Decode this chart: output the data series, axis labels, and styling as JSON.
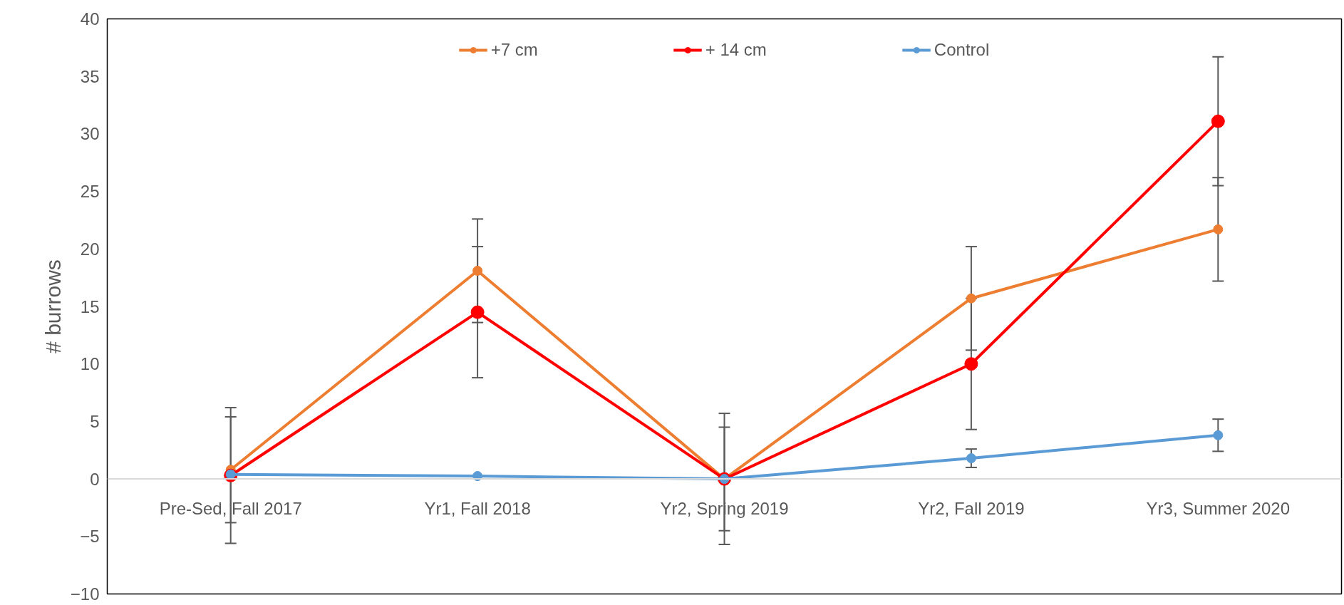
{
  "chart_data": {
    "type": "line",
    "ylabel": "# burrows",
    "categories": [
      "Pre-Sed, Fall 2017",
      "Yr1, Fall 2018",
      "Yr2, Spring 2019",
      "Yr2, Fall 2019",
      "Yr3, Summer 2020"
    ],
    "series": [
      {
        "name": "+7 cm",
        "color": "#ed7d31",
        "values": [
          0.8,
          18.1,
          0.0,
          15.7,
          21.7
        ],
        "errors": [
          4.6,
          4.5,
          4.5,
          4.5,
          4.5
        ]
      },
      {
        "name": "+ 14 cm",
        "color": "#ff0000",
        "values": [
          0.3,
          14.5,
          0.0,
          10.0,
          31.1
        ],
        "errors": [
          5.9,
          5.7,
          5.7,
          5.7,
          5.6
        ]
      },
      {
        "name": "Control",
        "color": "#5b9bd5",
        "values": [
          0.4,
          0.25,
          0.0,
          1.8,
          3.8
        ],
        "errors": [
          null,
          null,
          null,
          0.8,
          1.4
        ]
      }
    ],
    "ylim": [
      -10,
      40
    ],
    "yticks": [
      -10,
      -5,
      0,
      5,
      10,
      15,
      20,
      25,
      30,
      35,
      40
    ],
    "grid": false,
    "legend": "top",
    "marker": "circle",
    "line_style": "solid"
  }
}
